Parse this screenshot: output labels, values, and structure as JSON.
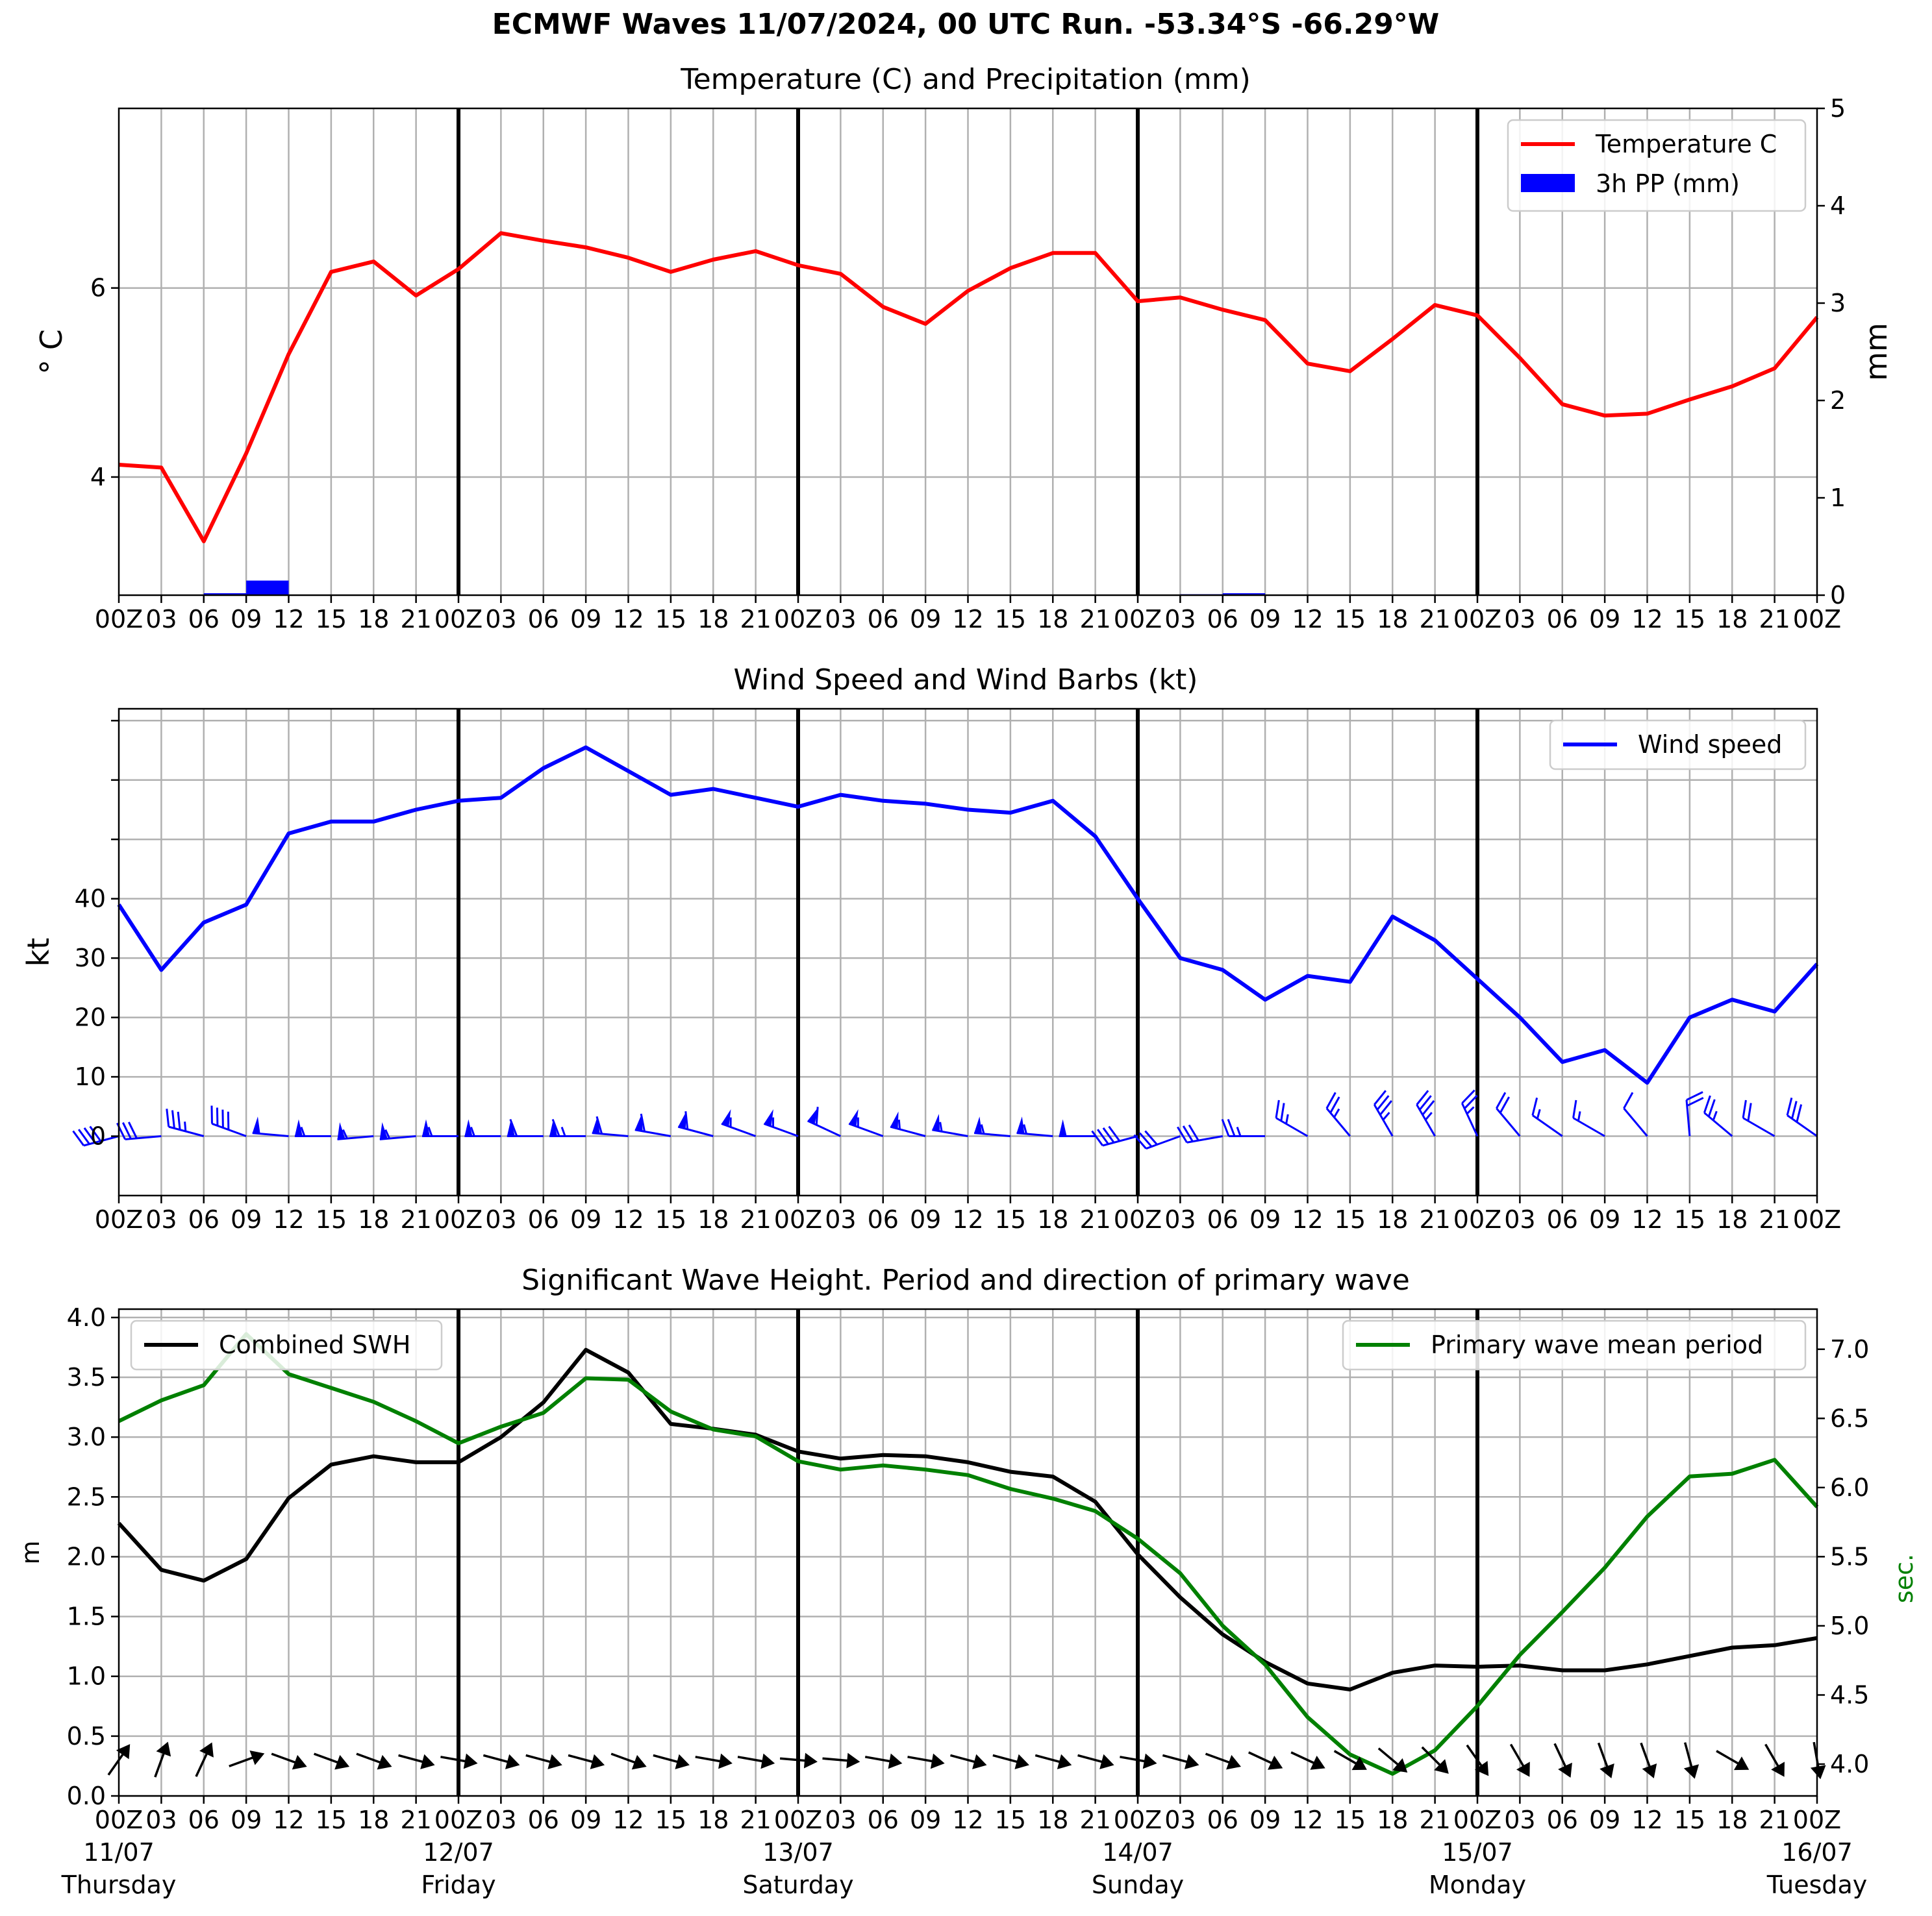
{
  "title": "ECMWF Waves 11/07/2024, 00 UTC Run. -53.34°S -66.29°W",
  "tick_labels": [
    "00Z",
    "03",
    "06",
    "09",
    "12",
    "15",
    "18",
    "21",
    "00Z",
    "03",
    "06",
    "09",
    "12",
    "15",
    "18",
    "21",
    "00Z",
    "03",
    "06",
    "09",
    "12",
    "15",
    "18",
    "21",
    "00Z",
    "03",
    "06",
    "09",
    "12",
    "15",
    "18",
    "21",
    "00Z",
    "03",
    "06",
    "09",
    "12",
    "15",
    "18",
    "21",
    "00Z"
  ],
  "day_labels": [
    {
      "date": "11/07",
      "day": "Thursday"
    },
    {
      "date": "12/07",
      "day": "Friday"
    },
    {
      "date": "13/07",
      "day": "Saturday"
    },
    {
      "date": "14/07",
      "day": "Sunday"
    },
    {
      "date": "15/07",
      "day": "Monday"
    },
    {
      "date": "16/07",
      "day": "Tuesday"
    }
  ],
  "colors": {
    "temperature": "#ff0000",
    "precip": "#0000ff",
    "wind": "#0000ff",
    "swh": "#000000",
    "period": "#008000",
    "grid": "#b0b0b0"
  },
  "chart_data": [
    {
      "type": "line",
      "title": "Temperature (C) and Precipitation (mm)",
      "ylabel": "° C",
      "y2label": "mm",
      "x_hours": [
        0,
        3,
        6,
        9,
        12,
        15,
        18,
        21,
        24,
        27,
        30,
        33,
        36,
        39,
        42,
        45,
        48,
        51,
        54,
        57,
        60,
        63,
        66,
        69,
        72,
        75,
        78,
        81,
        84,
        87,
        90,
        93,
        96,
        99,
        102,
        105,
        108,
        111,
        114,
        117,
        120
      ],
      "ylim": [
        2.75,
        7.9
      ],
      "yticks": [
        4,
        6
      ],
      "y2lim": [
        0,
        5
      ],
      "y2ticks": [
        0,
        1,
        2,
        3,
        4,
        5
      ],
      "grid": true,
      "legend_position": "top-right",
      "series": [
        {
          "name": "Temperature C",
          "kind": "line",
          "values": [
            4.13,
            4.1,
            3.32,
            4.25,
            5.3,
            6.17,
            6.28,
            5.92,
            6.2,
            6.58,
            6.5,
            6.43,
            6.32,
            6.17,
            6.3,
            6.39,
            6.24,
            6.15,
            5.8,
            5.62,
            5.97,
            6.21,
            6.37,
            6.37,
            5.86,
            5.9,
            5.77,
            5.66,
            5.2,
            5.12,
            5.46,
            5.82,
            5.71,
            5.26,
            4.77,
            4.65,
            4.67,
            4.82,
            4.96,
            5.15,
            5.69
          ]
        },
        {
          "name": "3h PP (mm)",
          "kind": "bar",
          "axis": "right",
          "values": [
            0,
            0,
            0.02,
            0.15,
            0,
            0,
            0,
            0,
            0,
            0,
            0,
            0,
            0,
            0,
            0,
            0,
            0,
            0,
            0,
            0,
            0,
            0,
            0,
            0,
            0,
            0.01,
            0.02,
            0,
            0,
            0,
            0,
            0,
            0,
            0,
            0,
            0,
            0,
            0,
            0,
            0
          ]
        }
      ]
    },
    {
      "type": "line",
      "title": "Wind Speed and Wind Barbs (kt)",
      "ylabel": "kt",
      "x_hours": [
        0,
        3,
        6,
        9,
        12,
        15,
        18,
        21,
        24,
        27,
        30,
        33,
        36,
        39,
        42,
        45,
        48,
        51,
        54,
        57,
        60,
        63,
        66,
        69,
        72,
        75,
        78,
        81,
        84,
        87,
        90,
        93,
        96,
        99,
        102,
        105,
        108,
        111,
        114,
        117,
        120
      ],
      "ylim": [
        -10,
        72
      ],
      "yticks": [
        0,
        10,
        20,
        30,
        40
      ],
      "extra_ticks": [
        50,
        60,
        70
      ],
      "grid": true,
      "legend_position": "top-right",
      "series": [
        {
          "name": "Wind speed",
          "values": [
            39,
            28,
            36,
            39,
            51,
            53,
            53,
            55,
            56.5,
            57,
            62,
            65.5,
            61.5,
            57.5,
            58.5,
            57,
            55.5,
            57.5,
            56.5,
            56,
            55,
            54.5,
            56.5,
            50.5,
            40,
            30,
            28,
            23,
            27,
            26,
            37,
            33,
            26.5,
            20,
            12.5,
            14.5,
            9,
            20,
            23,
            21,
            29
          ]
        }
      ],
      "barbs": {
        "x_hours": [
          0,
          3,
          6,
          9,
          12,
          15,
          18,
          21,
          24,
          27,
          30,
          33,
          36,
          39,
          42,
          45,
          48,
          51,
          54,
          57,
          60,
          63,
          66,
          69,
          72,
          75,
          78,
          81,
          84,
          87,
          90,
          93,
          96,
          99,
          102,
          105,
          108,
          111,
          114,
          117,
          120
        ],
        "speed_kt": [
          39,
          28,
          36,
          39,
          51,
          53,
          53,
          55,
          56.5,
          57,
          62,
          65.5,
          61.5,
          57.5,
          58.5,
          57,
          55.5,
          57.5,
          56.5,
          56,
          55,
          54.5,
          56.5,
          50.5,
          40,
          30,
          28,
          23,
          27,
          26,
          37,
          33,
          26.5,
          20,
          12.5,
          14.5,
          9,
          20,
          23,
          21,
          29
        ],
        "direction_from_deg": [
          255,
          265,
          285,
          290,
          275,
          270,
          265,
          265,
          270,
          270,
          270,
          270,
          275,
          280,
          285,
          290,
          290,
          295,
          290,
          285,
          280,
          275,
          275,
          270,
          255,
          250,
          260,
          270,
          300,
          320,
          330,
          330,
          335,
          320,
          305,
          300,
          320,
          355,
          310,
          300,
          305
        ]
      }
    },
    {
      "type": "line",
      "title": "Significant Wave Height. Period and direction of primary wave",
      "ylabel": "m",
      "y2label": "sec.",
      "x_hours": [
        0,
        3,
        6,
        9,
        12,
        15,
        18,
        21,
        24,
        27,
        30,
        33,
        36,
        39,
        42,
        45,
        48,
        51,
        54,
        57,
        60,
        63,
        66,
        69,
        72,
        75,
        78,
        81,
        84,
        87,
        90,
        93,
        96,
        99,
        102,
        105,
        108,
        111,
        114,
        117,
        120
      ],
      "ylim": [
        0,
        4.07
      ],
      "yticks": [
        0.0,
        0.5,
        1.0,
        1.5,
        2.0,
        2.5,
        3.0,
        3.5,
        4.0
      ],
      "y2lim": [
        3.77,
        7.29
      ],
      "y2ticks": [
        4.0,
        4.5,
        5.0,
        5.5,
        6.0,
        6.5,
        7.0
      ],
      "grid": true,
      "legend_position": "top-left / top-right",
      "series": [
        {
          "name": "Combined SWH",
          "axis": "left",
          "values": [
            2.28,
            1.89,
            1.8,
            1.98,
            2.49,
            2.77,
            2.84,
            2.79,
            2.79,
            3.0,
            3.29,
            3.73,
            3.54,
            3.11,
            3.07,
            3.02,
            2.88,
            2.82,
            2.85,
            2.84,
            2.79,
            2.71,
            2.67,
            2.46,
            2.02,
            1.66,
            1.35,
            1.12,
            0.94,
            0.89,
            1.03,
            1.09,
            1.08,
            1.09,
            1.05,
            1.05,
            1.1,
            1.17,
            1.24,
            1.26,
            1.32
          ]
        },
        {
          "name": "Primary wave mean period",
          "axis": "right",
          "values": [
            6.48,
            6.63,
            6.74,
            7.11,
            6.82,
            6.72,
            6.62,
            6.48,
            6.32,
            6.44,
            6.54,
            6.79,
            6.78,
            6.55,
            6.42,
            6.37,
            6.19,
            6.13,
            6.16,
            6.13,
            6.09,
            5.99,
            5.92,
            5.83,
            5.63,
            5.38,
            5.0,
            4.72,
            4.34,
            4.07,
            3.93,
            4.1,
            4.42,
            4.79,
            5.1,
            5.42,
            5.79,
            6.08,
            6.1,
            6.2,
            5.86
          ]
        }
      ],
      "wave_direction_from_deg": [
        215,
        200,
        205,
        250,
        290,
        290,
        290,
        285,
        280,
        285,
        285,
        285,
        290,
        285,
        280,
        280,
        275,
        275,
        280,
        280,
        285,
        285,
        285,
        285,
        280,
        285,
        290,
        295,
        295,
        300,
        310,
        315,
        325,
        330,
        335,
        340,
        340,
        345,
        300,
        330,
        350
      ]
    }
  ]
}
